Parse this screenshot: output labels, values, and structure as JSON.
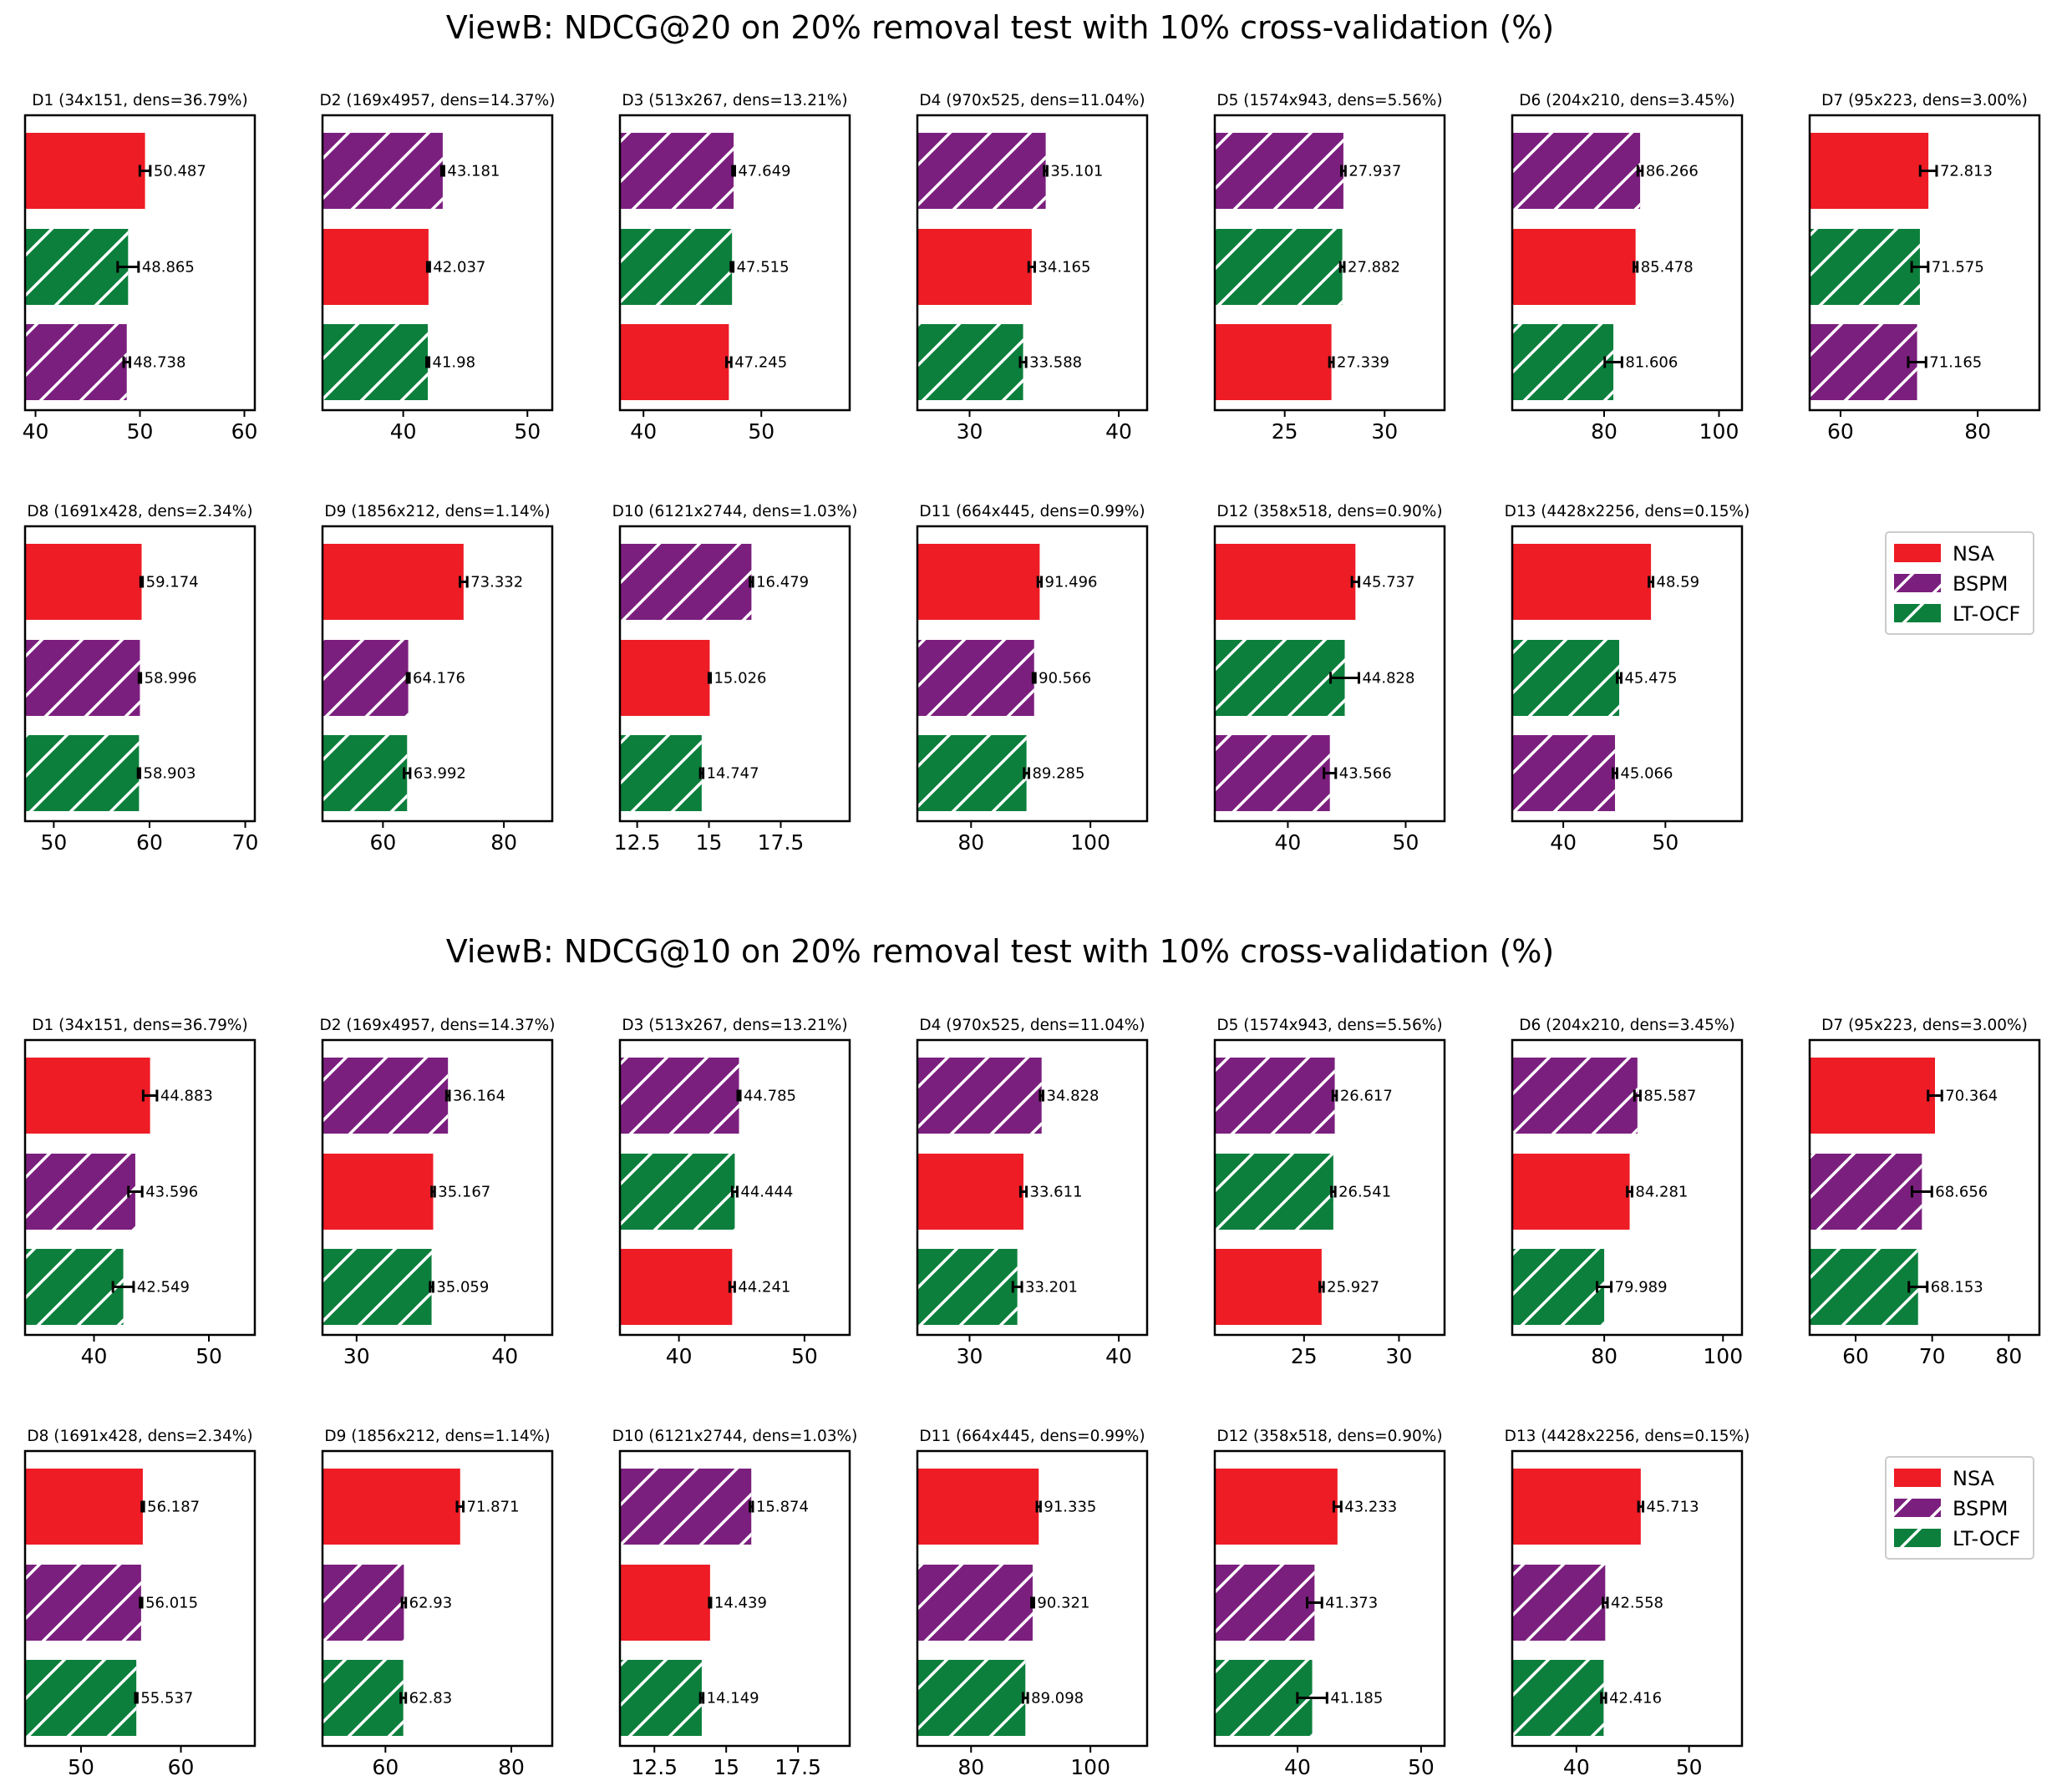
{
  "colors": {
    "NSA": "#ee1c25",
    "BSPM": "#7b1f7e",
    "LT-OCF": "#0c7f3c",
    "hatch": "#ffffff",
    "error": "#000000"
  },
  "legend": {
    "placement": "right",
    "entries": [
      "NSA",
      "BSPM",
      "LT-OCF"
    ]
  },
  "chart_data": [
    {
      "type": "bar",
      "orientation": "horizontal",
      "title": "ViewB: NDCG@20 on 20% removal test with 10% cross-validation (%)",
      "panels": [
        {
          "title": "D1 (34x151, dens=36.79%)",
          "xlim": [
            39,
            61
          ],
          "ticks": [
            40,
            50,
            60
          ],
          "bars": [
            {
              "model": "NSA",
              "value": 50.487,
              "label": "50.487",
              "err": 0.5
            },
            {
              "model": "LT-OCF",
              "value": 48.865,
              "label": "48.865",
              "err": 1.0
            },
            {
              "model": "BSPM",
              "value": 48.738,
              "label": "48.738",
              "err": 0.3
            }
          ]
        },
        {
          "title": "D2 (169x4957, dens=14.37%)",
          "xlim": [
            33.5,
            52.0
          ],
          "ticks": [
            40,
            50
          ],
          "bars": [
            {
              "model": "BSPM",
              "value": 43.181,
              "label": "43.181",
              "err": 0.1
            },
            {
              "model": "NSA",
              "value": 42.037,
              "label": "42.037",
              "err": 0.1
            },
            {
              "model": "LT-OCF",
              "value": 41.98,
              "label": "41.98",
              "err": 0.1
            }
          ]
        },
        {
          "title": "D3 (513x267, dens=13.21%)",
          "xlim": [
            38.0,
            57.5
          ],
          "ticks": [
            40,
            50
          ],
          "bars": [
            {
              "model": "BSPM",
              "value": 47.649,
              "label": "47.649",
              "err": 0.1
            },
            {
              "model": "LT-OCF",
              "value": 47.515,
              "label": "47.515",
              "err": 0.1
            },
            {
              "model": "NSA",
              "value": 47.245,
              "label": "47.245",
              "err": 0.2
            }
          ]
        },
        {
          "title": "D4 (970x525, dens=11.04%)",
          "xlim": [
            26.5,
            41.9
          ],
          "ticks": [
            30,
            40
          ],
          "bars": [
            {
              "model": "BSPM",
              "value": 35.101,
              "label": "35.101",
              "err": 0.1
            },
            {
              "model": "NSA",
              "value": 34.165,
              "label": "34.165",
              "err": 0.2
            },
            {
              "model": "LT-OCF",
              "value": 33.588,
              "label": "33.588",
              "err": 0.2
            }
          ]
        },
        {
          "title": "D5 (1574x943, dens=5.56%)",
          "xlim": [
            21.5,
            33.0
          ],
          "ticks": [
            25,
            30
          ],
          "bars": [
            {
              "model": "BSPM",
              "value": 27.937,
              "label": "27.937",
              "err": 0.1
            },
            {
              "model": "LT-OCF",
              "value": 27.882,
              "label": "27.882",
              "err": 0.1
            },
            {
              "model": "NSA",
              "value": 27.339,
              "label": "27.339",
              "err": 0.1
            }
          ]
        },
        {
          "title": "D6 (204x210, dens=3.45%)",
          "xlim": [
            64.0,
            104.0
          ],
          "ticks": [
            80,
            100
          ],
          "bars": [
            {
              "model": "BSPM",
              "value": 86.266,
              "label": "86.266",
              "err": 0.4
            },
            {
              "model": "NSA",
              "value": 85.478,
              "label": "85.478",
              "err": 0.3
            },
            {
              "model": "LT-OCF",
              "value": 81.606,
              "label": "81.606",
              "err": 1.5
            }
          ]
        },
        {
          "title": "D7 (95x223, dens=3.00%)",
          "xlim": [
            55.5,
            89.0
          ],
          "ticks": [
            60,
            80
          ],
          "bars": [
            {
              "model": "NSA",
              "value": 72.813,
              "label": "72.813",
              "err": 1.2
            },
            {
              "model": "LT-OCF",
              "value": 71.575,
              "label": "71.575",
              "err": 1.2
            },
            {
              "model": "BSPM",
              "value": 71.165,
              "label": "71.165",
              "err": 1.3
            }
          ]
        },
        {
          "title": "D8 (1691x428, dens=2.34%)",
          "xlim": [
            47.0,
            71.0
          ],
          "ticks": [
            50,
            60,
            70
          ],
          "bars": [
            {
              "model": "NSA",
              "value": 59.174,
              "label": "59.174",
              "err": 0.1
            },
            {
              "model": "BSPM",
              "value": 58.996,
              "label": "58.996",
              "err": 0.1
            },
            {
              "model": "LT-OCF",
              "value": 58.903,
              "label": "58.903",
              "err": 0.1
            }
          ]
        },
        {
          "title": "D9 (1856x212, dens=1.14%)",
          "xlim": [
            50.0,
            88.0
          ],
          "ticks": [
            60,
            80
          ],
          "bars": [
            {
              "model": "NSA",
              "value": 73.332,
              "label": "73.332",
              "err": 0.6
            },
            {
              "model": "BSPM",
              "value": 64.176,
              "label": "64.176",
              "err": 0.2
            },
            {
              "model": "LT-OCF",
              "value": 63.992,
              "label": "63.992",
              "err": 0.5
            }
          ]
        },
        {
          "title": "D10 (6121x2744, dens=1.03%)",
          "xlim": [
            11.9,
            19.9
          ],
          "ticks": [
            12.5,
            15.0,
            17.5
          ],
          "bars": [
            {
              "model": "BSPM",
              "value": 16.479,
              "label": "16.479",
              "err": 0.05
            },
            {
              "model": "NSA",
              "value": 15.026,
              "label": "15.026",
              "err": 0.03
            },
            {
              "model": "LT-OCF",
              "value": 14.747,
              "label": "14.747",
              "err": 0.05
            }
          ]
        },
        {
          "title": "D11 (664x445, dens=0.99%)",
          "xlim": [
            71.0,
            109.5
          ],
          "ticks": [
            80,
            100
          ],
          "bars": [
            {
              "model": "NSA",
              "value": 91.496,
              "label": "91.496",
              "err": 0.3
            },
            {
              "model": "BSPM",
              "value": 90.566,
              "label": "90.566",
              "err": 0.2
            },
            {
              "model": "LT-OCF",
              "value": 89.285,
              "label": "89.285",
              "err": 0.4
            }
          ]
        },
        {
          "title": "D12 (358x518, dens=0.90%)",
          "xlim": [
            33.8,
            53.3
          ],
          "ticks": [
            40,
            50
          ],
          "bars": [
            {
              "model": "NSA",
              "value": 45.737,
              "label": "45.737",
              "err": 0.3
            },
            {
              "model": "LT-OCF",
              "value": 44.828,
              "label": "44.828",
              "err": 1.2
            },
            {
              "model": "BSPM",
              "value": 43.566,
              "label": "43.566",
              "err": 0.5
            }
          ]
        },
        {
          "title": "D13 (4428x2256, dens=0.15%)",
          "xlim": [
            35.0,
            57.5
          ],
          "ticks": [
            40,
            50
          ],
          "bars": [
            {
              "model": "NSA",
              "value": 48.59,
              "label": "48.59",
              "err": 0.2
            },
            {
              "model": "LT-OCF",
              "value": 45.475,
              "label": "45.475",
              "err": 0.2
            },
            {
              "model": "BSPM",
              "value": 45.066,
              "label": "45.066",
              "err": 0.2
            }
          ]
        }
      ]
    },
    {
      "type": "bar",
      "orientation": "horizontal",
      "title": "ViewB: NDCG@10 on 20% removal test with 10% cross-validation (%)",
      "panels": [
        {
          "title": "D1 (34x151, dens=36.79%)",
          "xlim": [
            34.0,
            54.0
          ],
          "ticks": [
            40,
            50
          ],
          "bars": [
            {
              "model": "NSA",
              "value": 44.883,
              "label": "44.883",
              "err": 0.6
            },
            {
              "model": "BSPM",
              "value": 43.596,
              "label": "43.596",
              "err": 0.6
            },
            {
              "model": "LT-OCF",
              "value": 42.549,
              "label": "42.549",
              "err": 0.9
            }
          ]
        },
        {
          "title": "D2 (169x4957, dens=14.37%)",
          "xlim": [
            27.7,
            43.2
          ],
          "ticks": [
            30,
            40
          ],
          "bars": [
            {
              "model": "BSPM",
              "value": 36.164,
              "label": "36.164",
              "err": 0.1
            },
            {
              "model": "NSA",
              "value": 35.167,
              "label": "35.167",
              "err": 0.1
            },
            {
              "model": "LT-OCF",
              "value": 35.059,
              "label": "35.059",
              "err": 0.1
            }
          ]
        },
        {
          "title": "D3 (513x267, dens=13.21%)",
          "xlim": [
            35.3,
            53.6
          ],
          "ticks": [
            40,
            50
          ],
          "bars": [
            {
              "model": "BSPM",
              "value": 44.785,
              "label": "44.785",
              "err": 0.1
            },
            {
              "model": "LT-OCF",
              "value": 44.444,
              "label": "44.444",
              "err": 0.2
            },
            {
              "model": "NSA",
              "value": 44.241,
              "label": "44.241",
              "err": 0.2
            }
          ]
        },
        {
          "title": "D4 (970x525, dens=11.04%)",
          "xlim": [
            26.5,
            41.9
          ],
          "ticks": [
            30,
            40
          ],
          "bars": [
            {
              "model": "BSPM",
              "value": 34.828,
              "label": "34.828",
              "err": 0.1
            },
            {
              "model": "NSA",
              "value": 33.611,
              "label": "33.611",
              "err": 0.2
            },
            {
              "model": "LT-OCF",
              "value": 33.201,
              "label": "33.201",
              "err": 0.3
            }
          ]
        },
        {
          "title": "D5 (1574x943, dens=5.56%)",
          "xlim": [
            20.3,
            32.4
          ],
          "ticks": [
            25,
            30
          ],
          "bars": [
            {
              "model": "BSPM",
              "value": 26.617,
              "label": "26.617",
              "err": 0.1
            },
            {
              "model": "LT-OCF",
              "value": 26.541,
              "label": "26.541",
              "err": 0.1
            },
            {
              "model": "NSA",
              "value": 25.927,
              "label": "25.927",
              "err": 0.1
            }
          ]
        },
        {
          "title": "D6 (204x210, dens=3.45%)",
          "xlim": [
            64.5,
            103.2
          ],
          "ticks": [
            80,
            100
          ],
          "bars": [
            {
              "model": "BSPM",
              "value": 85.587,
              "label": "85.587",
              "err": 0.5
            },
            {
              "model": "NSA",
              "value": 84.281,
              "label": "84.281",
              "err": 0.4
            },
            {
              "model": "LT-OCF",
              "value": 79.989,
              "label": "79.989",
              "err": 1.2
            }
          ]
        },
        {
          "title": "D7 (95x223, dens=3.00%)",
          "xlim": [
            54.0,
            84.0
          ],
          "ticks": [
            60,
            70,
            80
          ],
          "bars": [
            {
              "model": "NSA",
              "value": 70.364,
              "label": "70.364",
              "err": 0.9
            },
            {
              "model": "BSPM",
              "value": 68.656,
              "label": "68.656",
              "err": 1.3
            },
            {
              "model": "LT-OCF",
              "value": 68.153,
              "label": "68.153",
              "err": 1.2
            }
          ]
        },
        {
          "title": "D8 (1691x428, dens=2.34%)",
          "xlim": [
            44.4,
            67.4
          ],
          "ticks": [
            50,
            60
          ],
          "bars": [
            {
              "model": "NSA",
              "value": 56.187,
              "label": "56.187",
              "err": 0.1
            },
            {
              "model": "BSPM",
              "value": 56.015,
              "label": "56.015",
              "err": 0.1
            },
            {
              "model": "LT-OCF",
              "value": 55.537,
              "label": "55.537",
              "err": 0.1
            }
          ]
        },
        {
          "title": "D9 (1856x212, dens=1.14%)",
          "xlim": [
            50.0,
            86.5
          ],
          "ticks": [
            60,
            80
          ],
          "bars": [
            {
              "model": "NSA",
              "value": 71.871,
              "label": "71.871",
              "err": 0.5
            },
            {
              "model": "BSPM",
              "value": 62.93,
              "label": "62.93",
              "err": 0.3
            },
            {
              "model": "LT-OCF",
              "value": 62.83,
              "label": "62.83",
              "err": 0.4
            }
          ]
        },
        {
          "title": "D10 (6121x2744, dens=1.03%)",
          "xlim": [
            11.3,
            19.3
          ],
          "ticks": [
            12.5,
            15.0,
            17.5
          ],
          "bars": [
            {
              "model": "BSPM",
              "value": 15.874,
              "label": "15.874",
              "err": 0.05
            },
            {
              "model": "NSA",
              "value": 14.439,
              "label": "14.439",
              "err": 0.03
            },
            {
              "model": "LT-OCF",
              "value": 14.149,
              "label": "14.149",
              "err": 0.05
            }
          ]
        },
        {
          "title": "D11 (664x445, dens=0.99%)",
          "xlim": [
            71.0,
            109.5
          ],
          "ticks": [
            80,
            100
          ],
          "bars": [
            {
              "model": "NSA",
              "value": 91.335,
              "label": "91.335",
              "err": 0.3
            },
            {
              "model": "BSPM",
              "value": 90.321,
              "label": "90.321",
              "err": 0.2
            },
            {
              "model": "LT-OCF",
              "value": 89.098,
              "label": "89.098",
              "err": 0.4
            }
          ]
        },
        {
          "title": "D12 (358x518, dens=0.90%)",
          "xlim": [
            33.3,
            51.9
          ],
          "ticks": [
            40,
            50
          ],
          "bars": [
            {
              "model": "NSA",
              "value": 43.233,
              "label": "43.233",
              "err": 0.3
            },
            {
              "model": "BSPM",
              "value": 41.373,
              "label": "41.373",
              "err": 0.6
            },
            {
              "model": "LT-OCF",
              "value": 41.185,
              "label": "41.185",
              "err": 1.2
            }
          ]
        },
        {
          "title": "D13 (4428x2256, dens=0.15%)",
          "xlim": [
            34.3,
            54.7
          ],
          "ticks": [
            40,
            50
          ],
          "bars": [
            {
              "model": "NSA",
              "value": 45.713,
              "label": "45.713",
              "err": 0.2
            },
            {
              "model": "BSPM",
              "value": 42.558,
              "label": "42.558",
              "err": 0.2
            },
            {
              "model": "LT-OCF",
              "value": 42.416,
              "label": "42.416",
              "err": 0.2
            }
          ]
        }
      ]
    }
  ]
}
